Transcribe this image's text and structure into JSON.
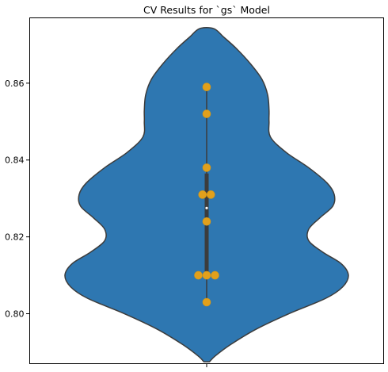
{
  "chart_data": {
    "type": "violin",
    "title": "CV Results for `gs` Model",
    "xlabel": "",
    "ylabel": "",
    "ylim": [
      0.787,
      0.877
    ],
    "yticks": [
      0.8,
      0.82,
      0.84,
      0.86
    ],
    "ytick_labels": [
      "0.80",
      "0.82",
      "0.84",
      "0.86"
    ],
    "grid": false,
    "violin_color": "#2e77b1",
    "edge_color": "#3c3c3c",
    "point_color": "#e1a01c",
    "points": [
      0.803,
      0.81,
      0.81,
      0.81,
      0.824,
      0.831,
      0.831,
      0.838,
      0.852,
      0.859
    ],
    "median": 0.8275,
    "quartiles": [
      0.81,
      0.8365
    ],
    "violin_extent": [
      0.7875,
      0.8742
    ],
    "violin_profile": [
      {
        "y": 0.7875,
        "w": 0.02
      },
      {
        "y": 0.789,
        "w": 0.06
      },
      {
        "y": 0.792,
        "w": 0.17
      },
      {
        "y": 0.796,
        "w": 0.35
      },
      {
        "y": 0.8,
        "w": 0.58
      },
      {
        "y": 0.804,
        "w": 0.84
      },
      {
        "y": 0.807,
        "w": 0.96
      },
      {
        "y": 0.81,
        "w": 1.0
      },
      {
        "y": 0.813,
        "w": 0.95
      },
      {
        "y": 0.816,
        "w": 0.82
      },
      {
        "y": 0.819,
        "w": 0.72
      },
      {
        "y": 0.822,
        "w": 0.72
      },
      {
        "y": 0.825,
        "w": 0.8
      },
      {
        "y": 0.828,
        "w": 0.89
      },
      {
        "y": 0.831,
        "w": 0.9
      },
      {
        "y": 0.834,
        "w": 0.85
      },
      {
        "y": 0.838,
        "w": 0.72
      },
      {
        "y": 0.842,
        "w": 0.56
      },
      {
        "y": 0.846,
        "w": 0.45
      },
      {
        "y": 0.85,
        "w": 0.44
      },
      {
        "y": 0.853,
        "w": 0.44
      },
      {
        "y": 0.857,
        "w": 0.43
      },
      {
        "y": 0.861,
        "w": 0.39
      },
      {
        "y": 0.865,
        "w": 0.31
      },
      {
        "y": 0.869,
        "w": 0.21
      },
      {
        "y": 0.872,
        "w": 0.12
      },
      {
        "y": 0.8742,
        "w": 0.05
      }
    ]
  }
}
